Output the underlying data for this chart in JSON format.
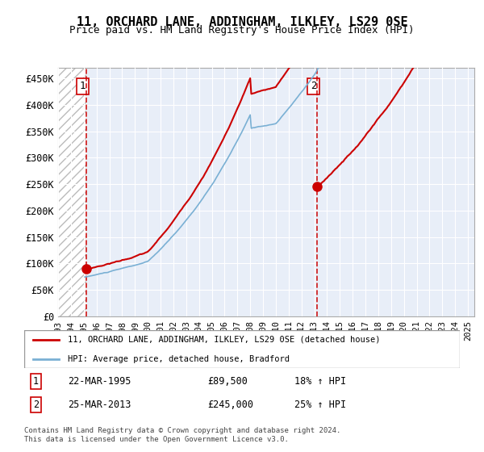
{
  "title": "11, ORCHARD LANE, ADDINGHAM, ILKLEY, LS29 0SE",
  "subtitle": "Price paid vs. HM Land Registry's House Price Index (HPI)",
  "ylabel": "",
  "xlim_start": 1993.0,
  "xlim_end": 2025.5,
  "ylim": [
    0,
    470000
  ],
  "yticks": [
    0,
    50000,
    100000,
    150000,
    200000,
    250000,
    300000,
    350000,
    400000,
    450000
  ],
  "ytick_labels": [
    "£0",
    "£50K",
    "£100K",
    "£150K",
    "£200K",
    "£250K",
    "£300K",
    "£350K",
    "£400K",
    "£450K"
  ],
  "xticks": [
    1993,
    1994,
    1995,
    1996,
    1997,
    1998,
    1999,
    2000,
    2001,
    2002,
    2003,
    2004,
    2005,
    2006,
    2007,
    2008,
    2009,
    2010,
    2011,
    2012,
    2013,
    2014,
    2015,
    2016,
    2017,
    2018,
    2019,
    2020,
    2021,
    2022,
    2023,
    2024,
    2025
  ],
  "sale1_x": 1995.22,
  "sale1_y": 89500,
  "sale2_x": 2013.23,
  "sale2_y": 245000,
  "legend_line1": "11, ORCHARD LANE, ADDINGHAM, ILKLEY, LS29 0SE (detached house)",
  "legend_line2": "HPI: Average price, detached house, Bradford",
  "annotation1_box": "1",
  "annotation2_box": "2",
  "table_row1": [
    "1",
    "22-MAR-1995",
    "£89,500",
    "18% ↑ HPI"
  ],
  "table_row2": [
    "2",
    "25-MAR-2013",
    "£245,000",
    "25% ↑ HPI"
  ],
  "footer": "Contains HM Land Registry data © Crown copyright and database right 2024.\nThis data is licensed under the Open Government Licence v3.0.",
  "sale_color": "#cc0000",
  "hpi_color": "#6699cc",
  "hatch_color": "#cccccc",
  "bg_plot_color": "#e8eef8",
  "grid_color": "#ffffff",
  "sale_line_color": "#cc0000",
  "hpi_line_color": "#7ab0d4"
}
